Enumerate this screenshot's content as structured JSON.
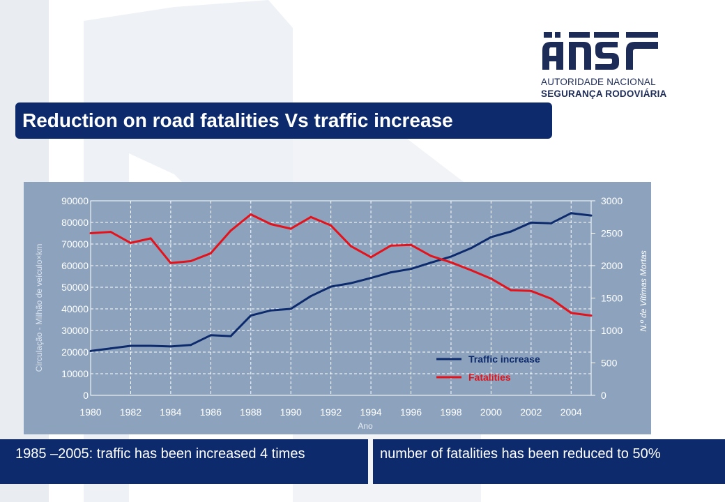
{
  "page": {
    "title": "Reduction on road fatalities Vs traffic increase",
    "footer_left": "1985 –2005: traffic has been increased 4 times",
    "footer_right": "number of fatalities has been reduced to 50%",
    "colors": {
      "navy": "#0c2a6c",
      "panel": "#8da3bd",
      "traffic_line": "#0c2a6c",
      "fatalities_line": "#e3121b"
    }
  },
  "logo": {
    "mark": "ansr",
    "line1": "AUTORIDADE NACIONAL",
    "line2": "SEGURANÇA RODOVIÁRIA"
  },
  "chart_data": {
    "type": "line",
    "xlabel": "Ano",
    "ylabel": "Circulação - Milhão de veículo×km",
    "y2label": "N.º de Vítimas Mortas",
    "x": [
      1980,
      1981,
      1982,
      1983,
      1984,
      1985,
      1986,
      1987,
      1988,
      1989,
      1990,
      1991,
      1992,
      1993,
      1994,
      1995,
      1996,
      1997,
      1998,
      1999,
      2000,
      2001,
      2002,
      2003,
      2004,
      2005
    ],
    "xticks": [
      "1980",
      "1982",
      "1984",
      "1986",
      "1988",
      "1990",
      "1992",
      "1994",
      "1996",
      "1998",
      "2000",
      "2002",
      "2004"
    ],
    "ylim": [
      0,
      90000
    ],
    "yticks": [
      "0",
      "10000",
      "20000",
      "30000",
      "40000",
      "50000",
      "60000",
      "70000",
      "80000",
      "90000"
    ],
    "y2lim": [
      0,
      3000
    ],
    "y2ticks": [
      "0",
      "500",
      "1000",
      "1500",
      "2000",
      "2500",
      "3000"
    ],
    "grid": true,
    "legend_position": "bottom-right",
    "series": [
      {
        "name": "Traffic increase",
        "axis": "left",
        "color": "#0c2a6c",
        "values": [
          20500,
          21700,
          22900,
          22900,
          22600,
          23300,
          27800,
          27400,
          36900,
          39300,
          40000,
          45900,
          50300,
          51900,
          54300,
          56900,
          58500,
          61400,
          64200,
          68100,
          73200,
          75800,
          79900,
          79600,
          84300,
          83200
        ]
      },
      {
        "name": "Fatalities",
        "axis": "right",
        "color": "#e3121b",
        "values": [
          2500,
          2520,
          2350,
          2420,
          2040,
          2070,
          2190,
          2540,
          2790,
          2640,
          2570,
          2750,
          2620,
          2300,
          2130,
          2310,
          2320,
          2150,
          2050,
          1930,
          1800,
          1620,
          1610,
          1490,
          1270,
          1230
        ]
      }
    ]
  }
}
